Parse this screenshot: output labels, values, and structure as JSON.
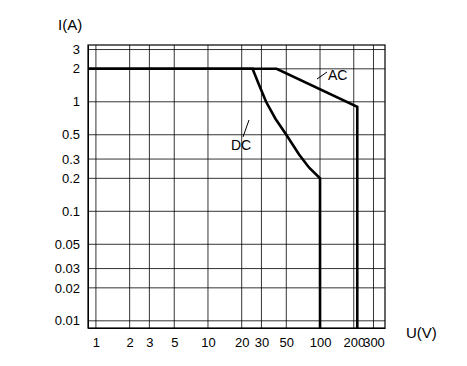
{
  "chart_data": {
    "type": "line",
    "x_label": "U(V)",
    "y_label": "I(A)",
    "log": true,
    "grid": true,
    "xlim": [
      0.85,
      380
    ],
    "ylim": [
      0.0086,
      3.3
    ],
    "xticks": [
      1,
      2,
      3,
      5,
      10,
      20,
      30,
      50,
      100,
      200,
      300
    ],
    "yticks": [
      0.01,
      0.02,
      0.03,
      0.05,
      0.1,
      0.2,
      0.3,
      0.5,
      1,
      2,
      3
    ],
    "series": [
      {
        "name": "DC",
        "color": "#000000",
        "line_style": "solid",
        "x": [
          0.85,
          25,
          28,
          33,
          40,
          50,
          65,
          80,
          100,
          100
        ],
        "values": [
          2,
          2,
          1.5,
          1,
          0.7,
          0.5,
          0.33,
          0.25,
          0.2,
          0.0086
        ]
      },
      {
        "name": "AC",
        "color": "#000000",
        "line_style": "solid",
        "x": [
          0.85,
          41,
          215,
          215
        ],
        "values": [
          2,
          2,
          0.9,
          0.0086
        ]
      }
    ]
  }
}
